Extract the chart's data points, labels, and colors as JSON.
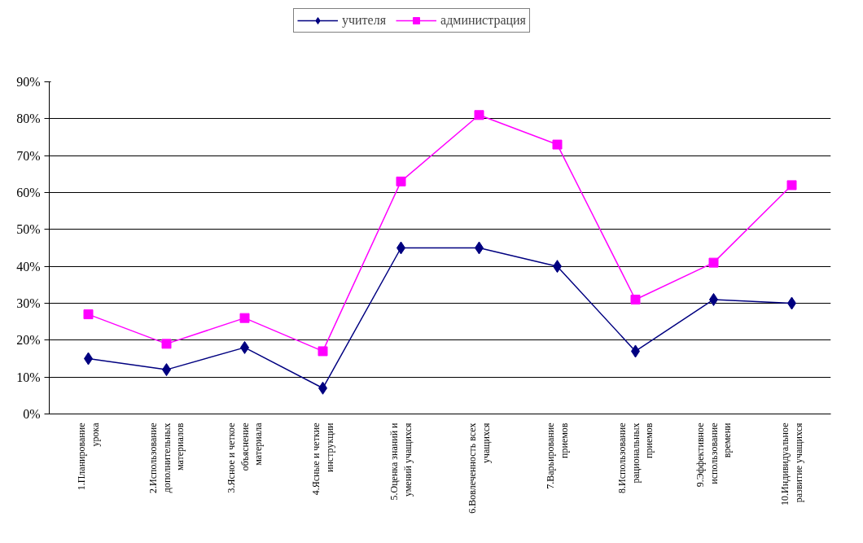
{
  "chart_data": {
    "type": "line",
    "categories": [
      "1.Планирование\nурока",
      "2.Использование\nдополнительных\nматериалов",
      "3.Ясное и четкое\nобъяснение\nматериала",
      "4.Ясные и четкие\nинструкции",
      "5.Оценка знаний и\nумений учащихся",
      "6.Вовлеченность всех\nучащихся",
      "7.Варьирование\nприемов",
      "8.Использование\nрациональных\nприемов",
      "9.Эффективное\nиспользование\nвремени",
      "10.Индивидуальное\nразвитие учащихся"
    ],
    "series": [
      {
        "name": "учителя",
        "color": "#000080",
        "marker": "diamond",
        "values": [
          15,
          12,
          18,
          7,
          45,
          45,
          40,
          17,
          31,
          30
        ]
      },
      {
        "name": "администрация",
        "color": "#ff00ff",
        "marker": "square",
        "values": [
          27,
          19,
          26,
          17,
          63,
          81,
          73,
          31,
          41,
          62
        ]
      }
    ],
    "ylim": [
      0,
      90
    ],
    "yticks": [
      {
        "value": 0,
        "label": "0%"
      },
      {
        "value": 10,
        "label": "10%"
      },
      {
        "value": 20,
        "label": "20%"
      },
      {
        "value": 30,
        "label": "30%"
      },
      {
        "value": 40,
        "label": "40%"
      },
      {
        "value": 50,
        "label": "50%"
      },
      {
        "value": 60,
        "label": "60%"
      },
      {
        "value": 70,
        "label": "70%"
      },
      {
        "value": 80,
        "label": "80%"
      },
      {
        "value": 90,
        "label": "90%"
      }
    ],
    "grid": "y",
    "legend": "top",
    "line_style": "solid"
  }
}
